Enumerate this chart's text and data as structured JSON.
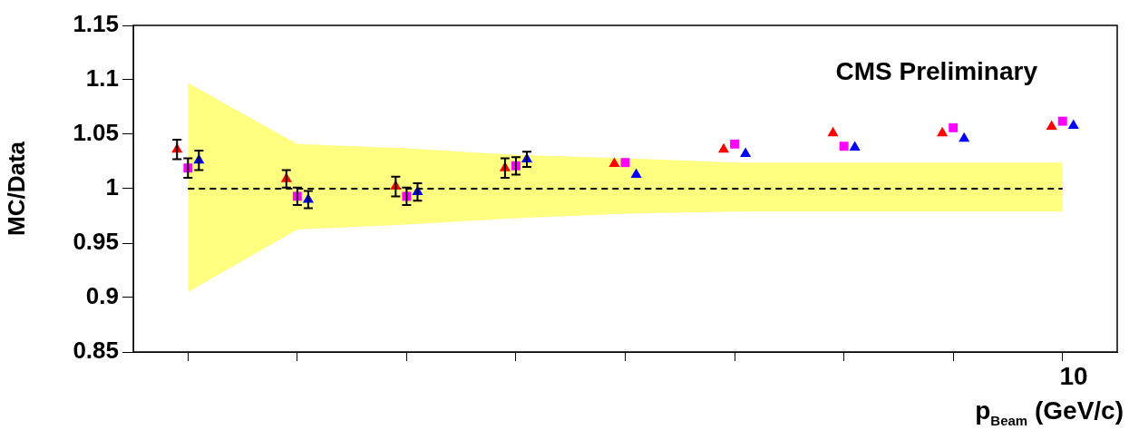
{
  "chart_data": {
    "type": "scatter",
    "ylabel": "MC/Data",
    "xlabel": "p$_{Beam}$ (GeV/c)",
    "annotations": [
      "CMS Preliminary",
      "10"
    ],
    "categories": [
      null,
      null,
      null,
      null,
      null,
      null,
      null,
      null,
      null
    ],
    "ylim": [
      0.85,
      1.15
    ],
    "yticks": [
      0.85,
      0.9,
      0.95,
      1,
      1.05,
      1.1,
      1.15
    ],
    "grid": false,
    "legend": false,
    "series": [
      {
        "type": "line",
        "color": "#000000",
        "line_style": "dashed",
        "marker": "none",
        "values": [
          1,
          1,
          1,
          1,
          1,
          1,
          1,
          1,
          1
        ],
        "lower": [
          0.905,
          0.9625,
          0.967,
          0.973,
          0.977,
          0.979,
          0.979,
          0.979,
          0.979
        ],
        "upper": [
          1.097,
          1.041,
          1.037,
          1.031,
          1.028,
          1.024,
          1.024,
          1.024,
          1.024
        ]
      },
      {
        "color": "#ff0000",
        "marker": "triangle",
        "values": [
          1.036,
          1.009,
          1.002,
          1.019,
          1.023,
          1.036,
          1.051,
          1.051,
          1.057
        ],
        "errors": [
          0.009,
          0.008,
          0.009,
          0.009,
          null,
          null,
          null,
          null,
          null
        ]
      },
      {
        "color": "#ff00ff",
        "marker": "square",
        "values": [
          1.019,
          0.993,
          0.993,
          1.021,
          1.024,
          1.041,
          1.039,
          1.056,
          1.062
        ],
        "errors": [
          0.009,
          0.008,
          0.008,
          0.008,
          null,
          null,
          null,
          null,
          null
        ]
      },
      {
        "color": "#0000ff",
        "marker": "triangle",
        "values": [
          1.026,
          0.99,
          0.997,
          1.027,
          1.013,
          1.032,
          1.038,
          1.046,
          1.058
        ],
        "errors": [
          0.009,
          0.008,
          0.008,
          0.007,
          null,
          null,
          null,
          null,
          null
        ]
      }
    ]
  }
}
